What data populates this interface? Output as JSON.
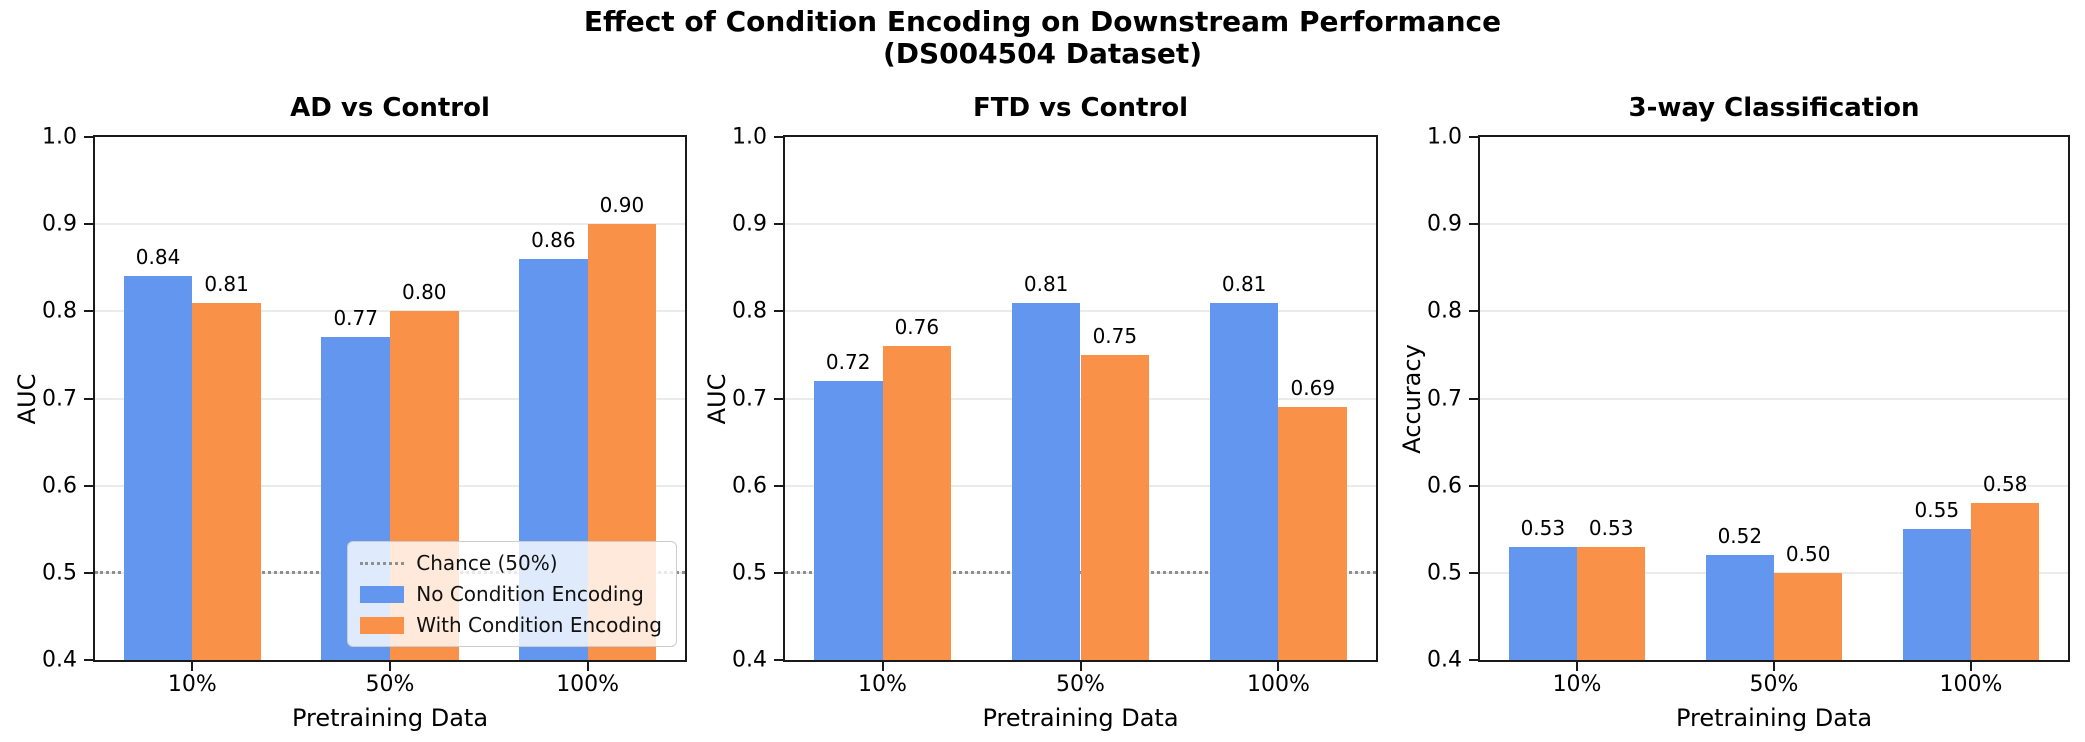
{
  "figure": {
    "title_line1": "Effect of Condition Encoding on Downstream Performance",
    "title_line2": "(DS004504 Dataset)"
  },
  "colors": {
    "no_condition_encoding": "#6296EF",
    "with_condition_encoding": "#FA9149",
    "chance_line": "#8f8f8f",
    "gridline": "#ebebeb"
  },
  "legend": {
    "location": "lower right of first subplot",
    "entries": [
      {
        "type": "line",
        "label": "Chance (50%)",
        "color": "#8f8f8f"
      },
      {
        "type": "patch",
        "label": "No Condition Encoding",
        "color": "#6296EF"
      },
      {
        "type": "patch",
        "label": "With Condition Encoding",
        "color": "#FA9149"
      }
    ]
  },
  "chart_data": [
    {
      "type": "bar",
      "title": "AD vs Control",
      "xlabel": "Pretraining Data",
      "ylabel": "AUC",
      "ylim": [
        0.4,
        1.0
      ],
      "yticks": [
        1.0,
        0.9,
        0.8,
        0.7,
        0.6,
        0.5,
        0.4
      ],
      "grid": true,
      "chance_line": 0.5,
      "categories": [
        "10%",
        "50%",
        "100%"
      ],
      "series": [
        {
          "name": "No Condition Encoding",
          "values": [
            0.84,
            0.77,
            0.86
          ],
          "labels": [
            "0.84",
            "0.77",
            "0.86"
          ]
        },
        {
          "name": "With Condition Encoding",
          "values": [
            0.81,
            0.8,
            0.9
          ],
          "labels": [
            "0.81",
            "0.80",
            "0.90"
          ]
        }
      ],
      "has_legend": true
    },
    {
      "type": "bar",
      "title": "FTD vs Control",
      "xlabel": "Pretraining Data",
      "ylabel": "AUC",
      "ylim": [
        0.4,
        1.0
      ],
      "yticks": [
        1.0,
        0.9,
        0.8,
        0.7,
        0.6,
        0.5,
        0.4
      ],
      "grid": true,
      "chance_line": 0.5,
      "categories": [
        "10%",
        "50%",
        "100%"
      ],
      "series": [
        {
          "name": "No Condition Encoding",
          "values": [
            0.72,
            0.81,
            0.81
          ],
          "labels": [
            "0.72",
            "0.81",
            "0.81"
          ]
        },
        {
          "name": "With Condition Encoding",
          "values": [
            0.76,
            0.75,
            0.69
          ],
          "labels": [
            "0.76",
            "0.75",
            "0.69"
          ]
        }
      ],
      "has_legend": false
    },
    {
      "type": "bar",
      "title": "3-way Classification",
      "xlabel": "Pretraining Data",
      "ylabel": "Accuracy",
      "ylim": [
        0.4,
        1.0
      ],
      "yticks": [
        1.0,
        0.9,
        0.8,
        0.7,
        0.6,
        0.5,
        0.4
      ],
      "grid": true,
      "chance_line": null,
      "categories": [
        "10%",
        "50%",
        "100%"
      ],
      "series": [
        {
          "name": "No Condition Encoding",
          "values": [
            0.53,
            0.52,
            0.55
          ],
          "labels": [
            "0.53",
            "0.52",
            "0.55"
          ]
        },
        {
          "name": "With Condition Encoding",
          "values": [
            0.53,
            0.5,
            0.58
          ],
          "labels": [
            "0.53",
            "0.50",
            "0.58"
          ]
        }
      ],
      "has_legend": false
    }
  ]
}
